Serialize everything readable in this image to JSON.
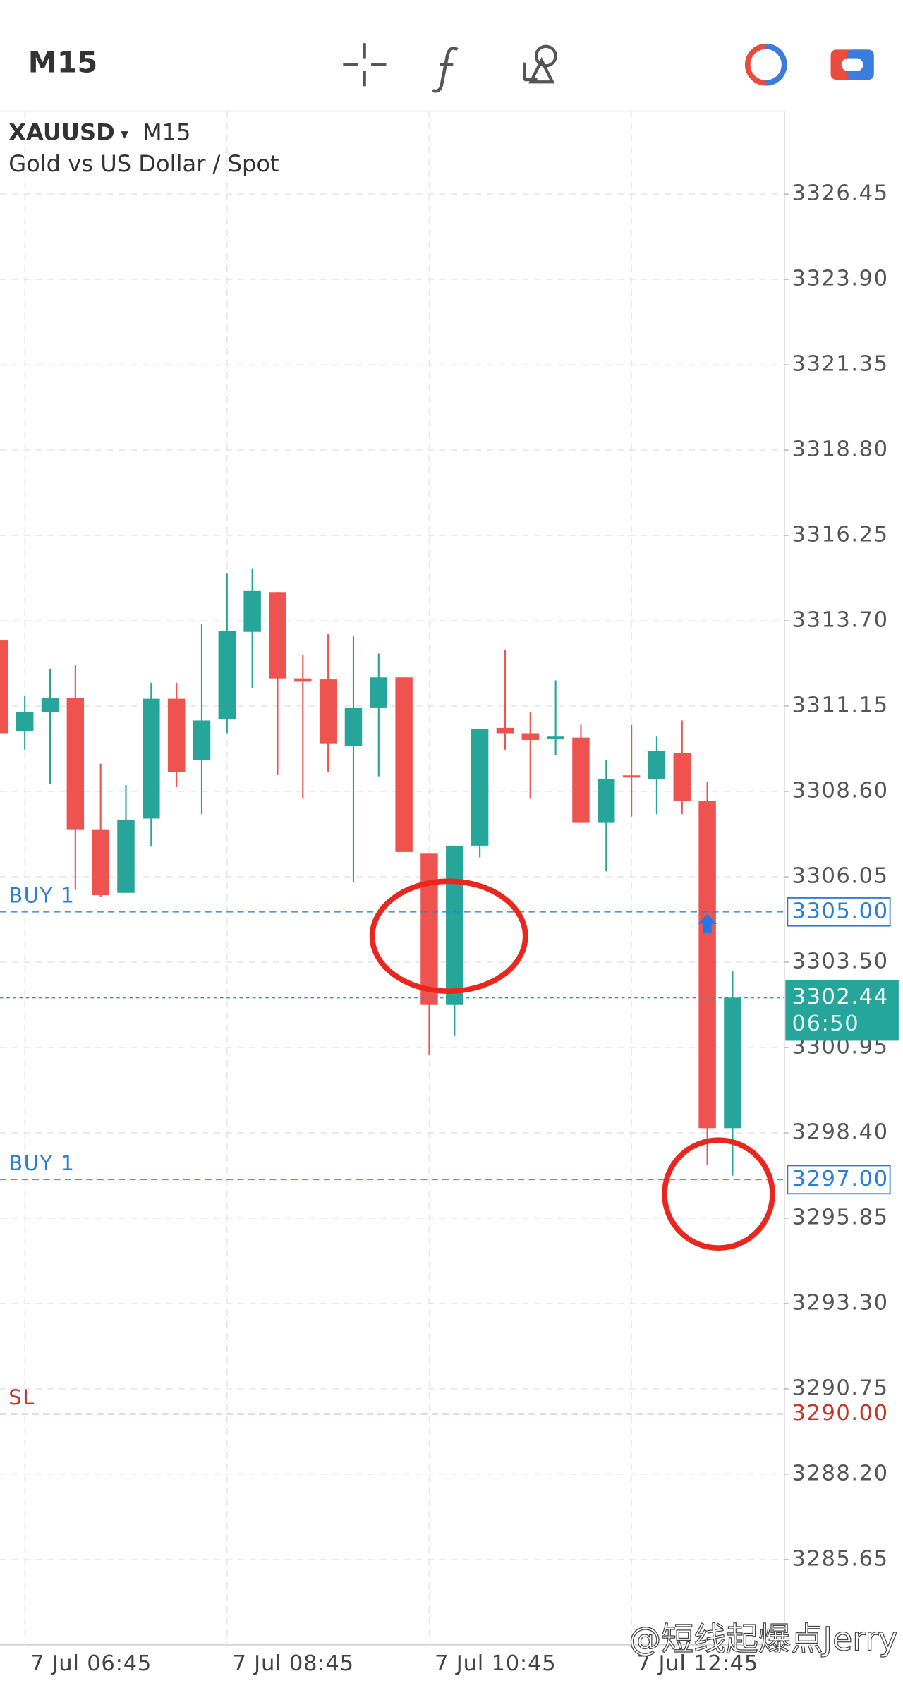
{
  "toolbar": {
    "timeframe": "M15"
  },
  "chart_data": {
    "type": "candlestick",
    "title": "XAUUSD",
    "timeframe": "M15",
    "subtitle": "Gold vs US Dollar / Spot",
    "categories": [
      null,
      "7 Jul 06:45",
      null,
      null,
      null,
      null,
      null,
      null,
      null,
      "7 Jul 08:45",
      null,
      null,
      null,
      null,
      null,
      null,
      null,
      "7 Jul 10:45",
      null,
      null,
      null,
      null,
      null,
      null,
      null,
      "7 Jul 12:45",
      null,
      null,
      null,
      null
    ],
    "open": [
      3313.11,
      3310.4,
      3310.98,
      3311.4,
      3307.47,
      3305.57,
      3307.79,
      3311.37,
      3309.53,
      3310.76,
      3313.37,
      3314.56,
      3311.98,
      3311.95,
      3309.95,
      3311.11,
      3312.01,
      3306.76,
      3302.22,
      3306.98,
      3310.5,
      3310.34,
      3310.18,
      3310.21,
      3307.66,
      3309.08,
      3308.98,
      3309.76,
      3308.31,
      3298.54
    ],
    "high": [
      3313.11,
      3311.46,
      3312.27,
      3312.37,
      3309.43,
      3308.79,
      3311.85,
      3311.85,
      3313.62,
      3315.11,
      3315.27,
      3314.56,
      3312.69,
      3313.3,
      3313.24,
      3312.72,
      3312.01,
      3306.76,
      3306.98,
      3310.47,
      3312.82,
      3310.98,
      3311.92,
      3310.59,
      3309.53,
      3310.59,
      3310.24,
      3310.72,
      3308.89,
      3303.25
    ],
    "low": [
      3310.34,
      3309.85,
      3308.82,
      3305.66,
      3305.44,
      3305.57,
      3306.95,
      3308.73,
      3307.92,
      3310.34,
      3311.69,
      3309.11,
      3308.4,
      3309.18,
      3305.89,
      3309.05,
      3306.79,
      3300.73,
      3301.31,
      3306.63,
      3309.85,
      3308.4,
      3309.69,
      3307.66,
      3306.21,
      3307.85,
      3307.92,
      3307.92,
      3297.45,
      3297.12
    ],
    "close": [
      3310.34,
      3310.98,
      3311.4,
      3307.47,
      3305.5,
      3307.76,
      3311.37,
      3309.18,
      3310.72,
      3313.4,
      3314.59,
      3311.98,
      3311.88,
      3310.02,
      3311.11,
      3312.01,
      3306.79,
      3302.22,
      3306.98,
      3310.47,
      3310.34,
      3310.14,
      3310.24,
      3307.66,
      3308.98,
      3309.02,
      3309.82,
      3308.31,
      3298.54,
      3302.44
    ],
    "up_color": "#26a69a",
    "down_color": "#ef5350",
    "ylim": [
      3283.1,
      3328.93
    ],
    "yticks": [
      3326.45,
      {
        "value": 3323.9,
        "label": "3323.90"
      },
      3321.35,
      {
        "value": 3318.8,
        "label": "3318.80"
      },
      3316.25,
      {
        "value": 3313.7,
        "label": "3313.70"
      },
      3311.15,
      {
        "value": 3308.6,
        "label": "3308.60"
      },
      3306.05,
      {
        "value": 3303.5,
        "label": "3303.50"
      },
      3300.95,
      {
        "value": 3298.4,
        "label": "3298.40"
      },
      3295.85,
      {
        "value": 3293.3,
        "label": "3293.30"
      },
      3290.75,
      {
        "value": 3288.2,
        "label": "3288.20"
      },
      3285.65
    ],
    "grid": true,
    "price_lines": [
      {
        "name": "BUY 1",
        "value": 3305,
        "label": "3305.00",
        "color": "#2a7fd4"
      },
      {
        "name": "BUY 1",
        "value": 3297,
        "label": "3297.00",
        "color": "#2a7fd4"
      },
      {
        "name": "SL",
        "value": 3290,
        "label": "3290.00",
        "color": "#c0392b"
      }
    ],
    "last_price": {
      "value": 3302.44,
      "countdown": "06:50",
      "color": "#26a69a"
    },
    "watermark": "@短线起爆点Jerry"
  }
}
